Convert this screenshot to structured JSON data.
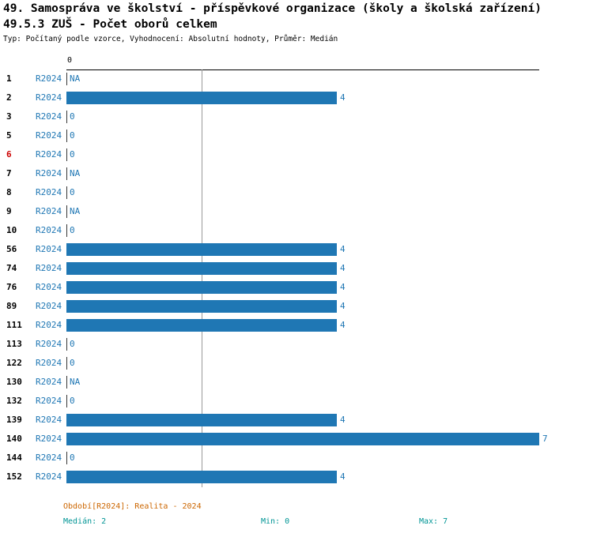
{
  "title_line1": "49. Samospráva ve školství - příspěvkové organizace (školy a školská zařízení)",
  "title_line2": "49.5.3 ZUŠ - Počet oborů celkem",
  "subtitle": "Typ: Počítaný podle vzorce, Vyhodnocení: Absolutní hodnoty, Průměr: Medián",
  "axis": {
    "top_tick_label": "0"
  },
  "chart_data": {
    "type": "bar",
    "orientation": "horizontal",
    "title": "49.5.3 ZUŠ - Počet oborů celkem",
    "categories": [
      "1",
      "2",
      "3",
      "5",
      "6",
      "7",
      "8",
      "9",
      "10",
      "56",
      "74",
      "76",
      "89",
      "111",
      "113",
      "122",
      "130",
      "132",
      "139",
      "140",
      "144",
      "152"
    ],
    "period_label": "R2024",
    "values": [
      null,
      4,
      0,
      0,
      0,
      null,
      0,
      null,
      0,
      4,
      4,
      4,
      4,
      4,
      0,
      0,
      null,
      0,
      4,
      7,
      0,
      4
    ],
    "value_labels": [
      "NA",
      "4",
      "0",
      "0",
      "0",
      "NA",
      "0",
      "NA",
      "0",
      "4",
      "4",
      "4",
      "4",
      "4",
      "0",
      "0",
      "NA",
      "0",
      "4",
      "7",
      "0",
      "4"
    ],
    "highlighted_category": "6",
    "xlim": [
      0,
      7
    ],
    "median_reference_line_x": 2,
    "grid": "single vertical reference line at median",
    "legend": "none",
    "bar_color": "#1f77b4",
    "highlight_color": "#cc0000"
  },
  "footer": {
    "period": "Období[R2024]: Realita - 2024",
    "median": "Medián: 2",
    "min": "Min: 0",
    "max": "Max: 7"
  },
  "colors": {
    "bar": "#1f77b4",
    "period_text": "#1f77b4",
    "value_text": "#1f77b4",
    "highlighted_row": "#cc0000",
    "footer_period": "#cc6600",
    "footer_stats": "#009595"
  }
}
